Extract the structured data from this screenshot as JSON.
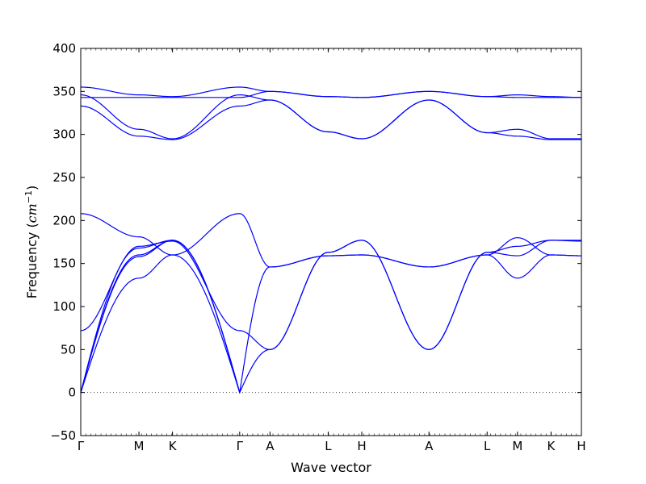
{
  "chart_data": {
    "type": "line",
    "xlabel": "Wave vector",
    "ylabel": "Frequency",
    "ylabel_unit": "cm",
    "ylabel_unit_exp": "−1",
    "ylim": [
      -50,
      400
    ],
    "yticks": [
      -50,
      0,
      50,
      100,
      150,
      200,
      250,
      300,
      350,
      400
    ],
    "x_points": [
      {
        "label": "Γ",
        "x": 0.0
      },
      {
        "label": "M",
        "x": 0.575
      },
      {
        "label": "K",
        "x": 0.907
      },
      {
        "label": "Γ",
        "x": 1.571
      },
      {
        "label": "A",
        "x": 1.871
      },
      {
        "label": "L",
        "x": 2.446
      },
      {
        "label": "H",
        "x": 2.778
      },
      {
        "label": "A",
        "x": 3.442
      },
      {
        "label": "L",
        "x": 4.017
      },
      {
        "label": "M",
        "x": 4.317
      },
      {
        "label": "K",
        "x": 4.649
      },
      {
        "label": "H",
        "x": 4.949
      }
    ],
    "zero_line": true,
    "line_color": "#0000ff",
    "bands": [
      {
        "points": [
          [
            0.0,
            0
          ],
          [
            0.575,
            133
          ],
          [
            0.907,
            160
          ],
          [
            1.571,
            0
          ]
        ]
      },
      {
        "points": [
          [
            0.0,
            0
          ],
          [
            0.575,
            158
          ],
          [
            0.907,
            177
          ],
          [
            1.571,
            0
          ]
        ]
      },
      {
        "points": [
          [
            0.0,
            0
          ],
          [
            0.575,
            168
          ],
          [
            0.907,
            177
          ],
          [
            1.571,
            0
          ],
          [
            1.871,
            146
          ],
          [
            2.446,
            159
          ],
          [
            2.778,
            160
          ],
          [
            3.442,
            146
          ],
          [
            4.017,
            160
          ],
          [
            4.317,
            180
          ],
          [
            4.649,
            160
          ],
          [
            4.949,
            159
          ]
        ]
      },
      {
        "points": [
          [
            0.0,
            72
          ],
          [
            0.575,
            170
          ],
          [
            0.907,
            176
          ],
          [
            1.571,
            72
          ],
          [
            1.871,
            50
          ],
          [
            2.446,
            163
          ],
          [
            2.778,
            177
          ],
          [
            3.442,
            50
          ],
          [
            4.017,
            163
          ],
          [
            4.317,
            159
          ],
          [
            4.649,
            177
          ],
          [
            4.949,
            176
          ]
        ]
      },
      {
        "points": [
          [
            0.0,
            208
          ],
          [
            0.575,
            181
          ],
          [
            0.907,
            160
          ],
          [
            1.571,
            208
          ],
          [
            1.871,
            146
          ],
          [
            2.446,
            159
          ],
          [
            2.778,
            160
          ],
          [
            3.442,
            146
          ],
          [
            4.017,
            160
          ],
          [
            4.317,
            133
          ],
          [
            4.649,
            160
          ],
          [
            4.949,
            159
          ]
        ]
      },
      {
        "points": [
          [
            0.0,
            0
          ],
          [
            0.575,
            160
          ],
          [
            0.907,
            177
          ],
          [
            1.571,
            0
          ],
          [
            1.871,
            50
          ],
          [
            2.446,
            163
          ],
          [
            2.778,
            177
          ],
          [
            3.442,
            50
          ],
          [
            4.017,
            163
          ],
          [
            4.317,
            170
          ],
          [
            4.649,
            177
          ],
          [
            4.949,
            177
          ]
        ]
      },
      {
        "points": [
          [
            0.0,
            333
          ],
          [
            0.575,
            298
          ],
          [
            0.907,
            294
          ],
          [
            1.571,
            333
          ],
          [
            1.871,
            340
          ],
          [
            2.446,
            303
          ],
          [
            2.778,
            295
          ],
          [
            3.442,
            340
          ],
          [
            4.017,
            302
          ],
          [
            4.317,
            298
          ],
          [
            4.649,
            294
          ],
          [
            4.949,
            294
          ]
        ]
      },
      {
        "points": [
          [
            0.0,
            346
          ],
          [
            0.575,
            306
          ],
          [
            0.907,
            295
          ],
          [
            1.571,
            346
          ],
          [
            1.871,
            340
          ],
          [
            2.446,
            303
          ],
          [
            2.778,
            295
          ],
          [
            3.442,
            340
          ],
          [
            4.017,
            302
          ],
          [
            4.317,
            306
          ],
          [
            4.649,
            295
          ],
          [
            4.949,
            295
          ]
        ]
      },
      {
        "points": [
          [
            0.0,
            343
          ],
          [
            0.575,
            343
          ],
          [
            0.907,
            343
          ],
          [
            1.571,
            343
          ],
          [
            1.871,
            350
          ],
          [
            2.446,
            344
          ],
          [
            2.778,
            343
          ],
          [
            3.442,
            350
          ],
          [
            4.017,
            344
          ],
          [
            4.317,
            343
          ],
          [
            4.649,
            343
          ],
          [
            4.949,
            343
          ]
        ]
      },
      {
        "points": [
          [
            0.0,
            355
          ],
          [
            0.575,
            346
          ],
          [
            0.907,
            344
          ],
          [
            1.571,
            355
          ],
          [
            1.871,
            350
          ],
          [
            2.446,
            344
          ],
          [
            2.778,
            343
          ],
          [
            3.442,
            350
          ],
          [
            4.017,
            344
          ],
          [
            4.317,
            346
          ],
          [
            4.649,
            344
          ],
          [
            4.949,
            343
          ]
        ]
      }
    ]
  }
}
